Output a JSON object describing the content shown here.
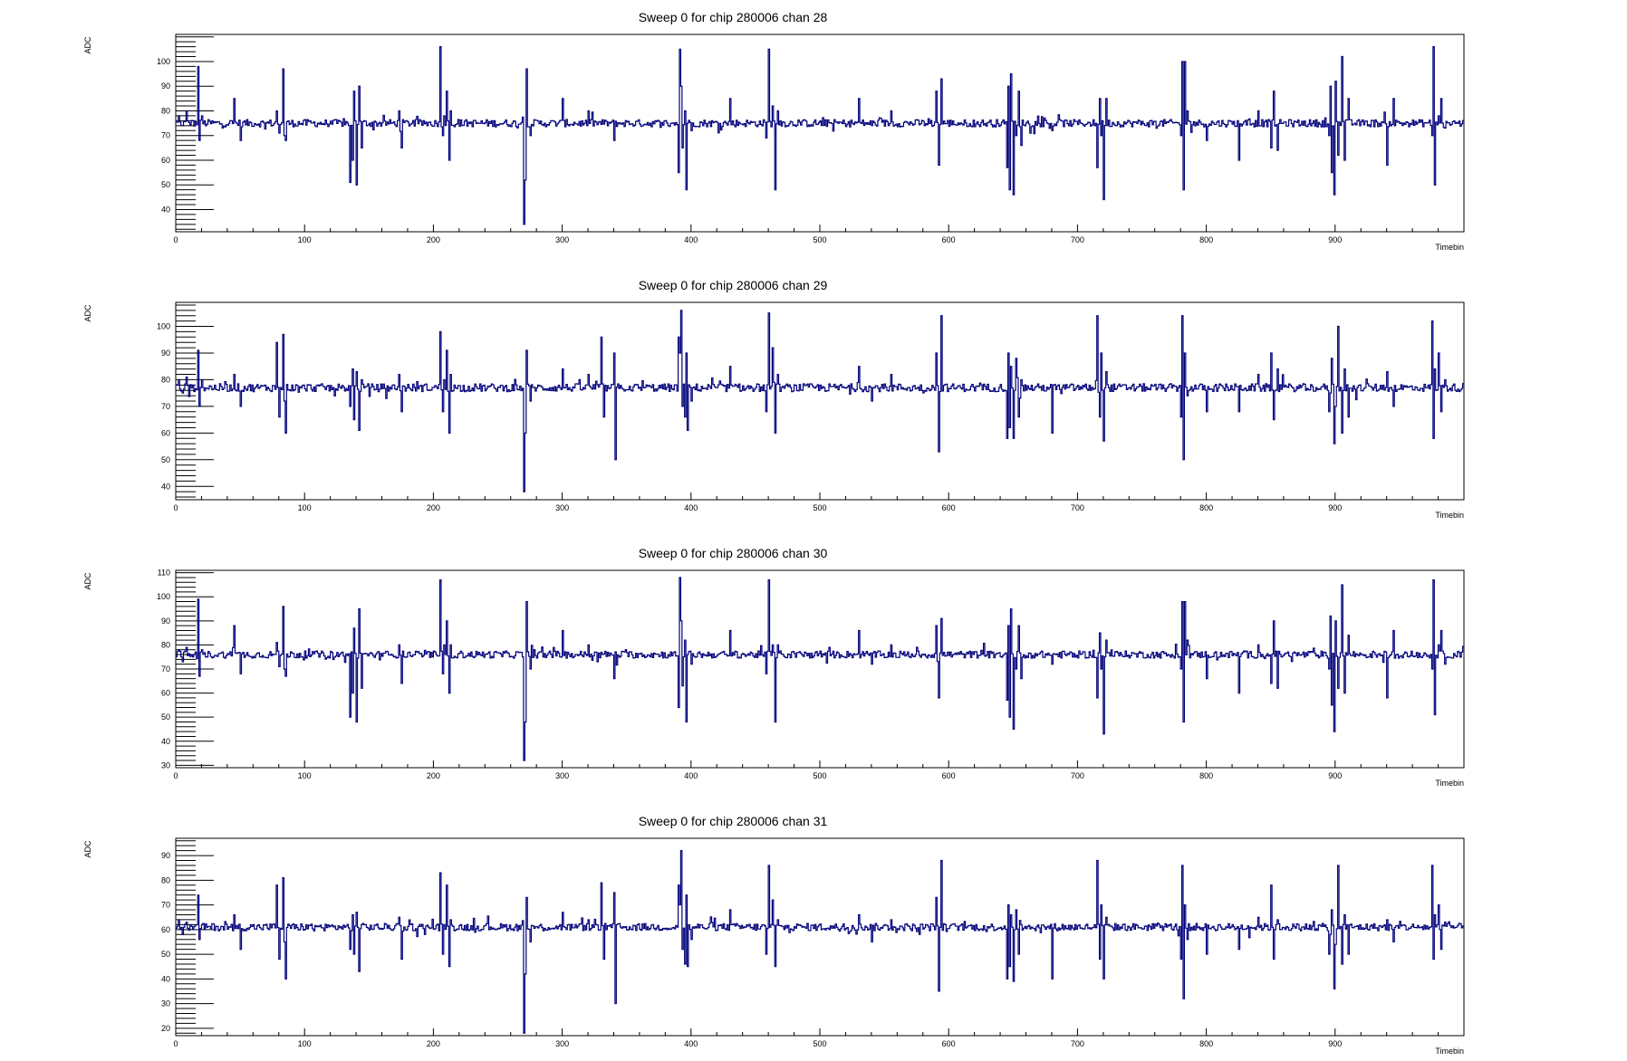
{
  "chart_data": [
    {
      "type": "line",
      "title": "Sweep 0 for chip 280006 chan 28",
      "xlabel": "Timebin",
      "ylabel": "ADC",
      "xlim": [
        0,
        1000
      ],
      "ylim": [
        31,
        111
      ],
      "x_ticks": [
        0,
        100,
        200,
        300,
        400,
        500,
        600,
        700,
        800,
        900
      ],
      "y_ticks": [
        40,
        50,
        60,
        70,
        80,
        90,
        100
      ],
      "color": "#00007a",
      "baseline": 75,
      "series": [
        {
          "x": [
            2,
            5,
            8,
            13,
            17,
            18,
            20,
            45,
            50,
            78,
            80,
            83,
            84,
            85,
            135,
            137,
            138,
            140,
            142,
            144,
            173,
            175,
            205,
            207,
            208,
            210,
            212,
            213,
            270,
            271,
            272,
            275,
            300,
            320,
            340,
            390,
            391,
            392,
            393,
            395,
            396,
            397,
            400,
            430,
            458,
            460,
            463,
            465,
            467,
            530,
            540,
            555,
            590,
            592,
            594,
            645,
            646,
            647,
            648,
            650,
            652,
            654,
            656,
            680,
            715,
            717,
            718,
            720,
            722,
            780,
            781,
            782,
            783,
            785,
            800,
            825,
            840,
            850,
            852,
            855,
            895,
            896,
            897,
            899,
            900,
            902,
            905,
            907,
            910,
            940,
            945,
            975,
            976,
            977,
            980,
            982,
            985
          ],
          "y": [
            78,
            74,
            80,
            76,
            98,
            68,
            78,
            85,
            68,
            80,
            71,
            97,
            70,
            68,
            51,
            60,
            88,
            50,
            90,
            65,
            80,
            65,
            106,
            70,
            78,
            88,
            60,
            80,
            34,
            52,
            97,
            70,
            85,
            80,
            68,
            55,
            105,
            90,
            65,
            80,
            48,
            75,
            72,
            85,
            69,
            105,
            82,
            48,
            80,
            85,
            74,
            80,
            88,
            58,
            93,
            57,
            90,
            48,
            95,
            46,
            70,
            88,
            66,
            72,
            57,
            85,
            70,
            44,
            85,
            70,
            100,
            48,
            100,
            80,
            68,
            60,
            80,
            65,
            88,
            64,
            70,
            90,
            55,
            46,
            92,
            62,
            102,
            60,
            85,
            58,
            85,
            70,
            106,
            50,
            78,
            85,
            73
          ]
        }
      ]
    },
    {
      "type": "line",
      "title": "Sweep 0 for chip 280006 chan 29",
      "xlabel": "Timebin",
      "ylabel": "ADC",
      "xlim": [
        0,
        1000
      ],
      "ylim": [
        35,
        109
      ],
      "x_ticks": [
        0,
        100,
        200,
        300,
        400,
        500,
        600,
        700,
        800,
        900
      ],
      "y_ticks": [
        40,
        50,
        60,
        70,
        80,
        90,
        100
      ],
      "color": "#00007a",
      "baseline": 77,
      "series": [
        {
          "x": [
            2,
            5,
            8,
            13,
            17,
            18,
            20,
            45,
            50,
            78,
            80,
            83,
            84,
            85,
            135,
            137,
            138,
            140,
            142,
            144,
            173,
            175,
            205,
            207,
            208,
            210,
            212,
            213,
            270,
            271,
            272,
            275,
            300,
            320,
            330,
            332,
            340,
            341,
            390,
            391,
            392,
            393,
            395,
            396,
            397,
            400,
            430,
            458,
            460,
            463,
            465,
            467,
            530,
            540,
            555,
            590,
            592,
            594,
            645,
            646,
            647,
            648,
            650,
            652,
            654,
            656,
            680,
            715,
            717,
            718,
            720,
            722,
            780,
            781,
            782,
            783,
            785,
            800,
            825,
            840,
            850,
            852,
            855,
            895,
            896,
            897,
            899,
            900,
            902,
            905,
            907,
            910,
            940,
            945,
            975,
            976,
            977,
            980,
            982,
            985
          ],
          "y": [
            80,
            75,
            81,
            78,
            91,
            70,
            80,
            82,
            70,
            94,
            66,
            97,
            72,
            60,
            70,
            84,
            65,
            83,
            61,
            80,
            82,
            68,
            98,
            68,
            80,
            91,
            60,
            82,
            38,
            60,
            91,
            72,
            84,
            82,
            96,
            66,
            90,
            50,
            96,
            90,
            106,
            70,
            66,
            90,
            61,
            72,
            85,
            68,
            105,
            92,
            60,
            82,
            85,
            72,
            82,
            90,
            53,
            104,
            58,
            90,
            62,
            85,
            58,
            88,
            66,
            80,
            60,
            104,
            66,
            90,
            57,
            83,
            66,
            104,
            50,
            90,
            74,
            68,
            68,
            82,
            90,
            65,
            84,
            68,
            75,
            88,
            56,
            70,
            100,
            60,
            84,
            66,
            83,
            70,
            102,
            58,
            84,
            90,
            68,
            80
          ]
        }
      ]
    },
    {
      "type": "line",
      "title": "Sweep 0 for chip 280006 chan 30",
      "xlabel": "Timebin",
      "ylabel": "ADC",
      "xlim": [
        0,
        1000
      ],
      "ylim": [
        29,
        111
      ],
      "x_ticks": [
        0,
        100,
        200,
        300,
        400,
        500,
        600,
        700,
        800,
        900
      ],
      "y_ticks": [
        30,
        40,
        50,
        60,
        70,
        80,
        90,
        100,
        110
      ],
      "color": "#00007a",
      "baseline": 76,
      "series": [
        {
          "x": [
            2,
            5,
            8,
            13,
            17,
            18,
            20,
            45,
            50,
            78,
            80,
            83,
            84,
            85,
            135,
            137,
            138,
            140,
            142,
            144,
            173,
            175,
            205,
            207,
            208,
            210,
            212,
            213,
            270,
            271,
            272,
            275,
            300,
            320,
            340,
            390,
            391,
            392,
            393,
            395,
            396,
            397,
            400,
            430,
            458,
            460,
            463,
            465,
            467,
            530,
            540,
            555,
            590,
            592,
            594,
            645,
            646,
            647,
            648,
            650,
            652,
            654,
            656,
            680,
            715,
            717,
            718,
            720,
            722,
            780,
            781,
            782,
            783,
            785,
            800,
            825,
            840,
            850,
            852,
            855,
            895,
            896,
            897,
            899,
            900,
            902,
            905,
            907,
            910,
            940,
            945,
            975,
            976,
            977,
            980,
            982,
            985
          ],
          "y": [
            78,
            73,
            79,
            75,
            99,
            67,
            78,
            88,
            68,
            81,
            71,
            96,
            70,
            67,
            50,
            60,
            87,
            48,
            95,
            62,
            80,
            64,
            107,
            68,
            80,
            90,
            60,
            80,
            32,
            48,
            98,
            70,
            86,
            80,
            66,
            54,
            108,
            90,
            63,
            82,
            48,
            76,
            72,
            86,
            68,
            107,
            80,
            48,
            80,
            86,
            72,
            80,
            88,
            58,
            91,
            57,
            88,
            50,
            95,
            45,
            70,
            88,
            66,
            72,
            58,
            85,
            70,
            43,
            82,
            70,
            98,
            48,
            98,
            82,
            66,
            60,
            80,
            64,
            90,
            62,
            70,
            92,
            55,
            44,
            90,
            62,
            105,
            60,
            84,
            58,
            86,
            70,
            107,
            51,
            80,
            86,
            72
          ]
        }
      ]
    },
    {
      "type": "line",
      "title": "Sweep 0 for chip 280006 chan 31",
      "xlabel": "Timebin",
      "ylabel": "ADC",
      "xlim": [
        0,
        1000
      ],
      "ylim": [
        17,
        97
      ],
      "x_ticks": [
        0,
        100,
        200,
        300,
        400,
        500,
        600,
        700,
        800,
        900
      ],
      "y_ticks": [
        20,
        30,
        40,
        50,
        60,
        70,
        80,
        90
      ],
      "color": "#00007a",
      "baseline": 61,
      "series": [
        {
          "x": [
            2,
            5,
            8,
            13,
            17,
            18,
            20,
            45,
            50,
            78,
            80,
            83,
            84,
            85,
            135,
            137,
            138,
            140,
            142,
            144,
            173,
            175,
            205,
            207,
            208,
            210,
            212,
            213,
            270,
            271,
            272,
            275,
            300,
            320,
            330,
            332,
            340,
            341,
            390,
            391,
            392,
            393,
            395,
            396,
            397,
            400,
            430,
            458,
            460,
            463,
            465,
            467,
            530,
            540,
            555,
            590,
            592,
            594,
            645,
            646,
            647,
            648,
            650,
            652,
            654,
            656,
            680,
            715,
            717,
            718,
            720,
            722,
            780,
            781,
            782,
            783,
            785,
            800,
            825,
            840,
            850,
            852,
            855,
            895,
            896,
            897,
            899,
            900,
            902,
            905,
            907,
            910,
            940,
            945,
            975,
            976,
            977,
            980,
            982,
            985
          ],
          "y": [
            64,
            58,
            63,
            60,
            74,
            56,
            62,
            66,
            52,
            78,
            48,
            81,
            55,
            40,
            52,
            66,
            50,
            67,
            43,
            62,
            65,
            48,
            83,
            50,
            62,
            78,
            45,
            64,
            18,
            42,
            73,
            55,
            67,
            64,
            79,
            48,
            75,
            30,
            78,
            70,
            92,
            52,
            46,
            74,
            45,
            56,
            68,
            50,
            86,
            72,
            45,
            64,
            66,
            55,
            64,
            73,
            35,
            88,
            40,
            70,
            45,
            66,
            39,
            68,
            50,
            62,
            40,
            88,
            48,
            70,
            40,
            65,
            48,
            86,
            32,
            70,
            56,
            50,
            52,
            65,
            78,
            48,
            64,
            50,
            58,
            68,
            36,
            54,
            86,
            46,
            66,
            50,
            64,
            55,
            86,
            48,
            66,
            70,
            52,
            63
          ]
        }
      ]
    }
  ]
}
